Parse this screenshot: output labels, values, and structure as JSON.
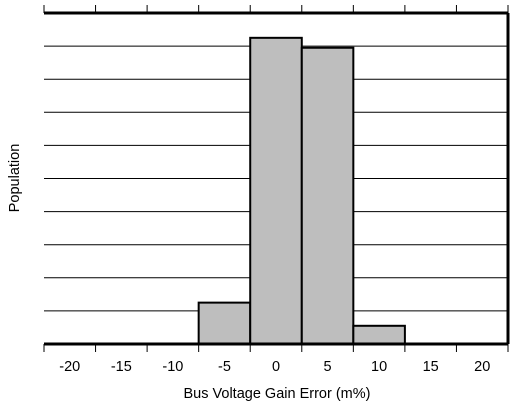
{
  "chart_data": {
    "type": "bar",
    "title": "",
    "xlabel": "Bus Voltage Gain Error (m%)",
    "ylabel": "Population",
    "x_ticks": [
      "-20",
      "-15",
      "-10",
      "-5",
      "0",
      "5",
      "10",
      "15",
      "20"
    ],
    "x_tick_values": [
      -20,
      -15,
      -10,
      -5,
      0,
      5,
      10,
      15,
      20
    ],
    "xlim": [
      -22.5,
      22.5
    ],
    "ylim": [
      0,
      10
    ],
    "grid": "horizontal",
    "bins": [
      {
        "from": -7.5,
        "to": -2.5,
        "value": 1.25
      },
      {
        "from": -2.5,
        "to": 2.5,
        "value": 9.25
      },
      {
        "from": 2.5,
        "to": 7.5,
        "value": 8.95
      },
      {
        "from": 7.5,
        "to": 12.5,
        "value": 0.55
      }
    ],
    "colors": {
      "bar_fill": "#bebebe",
      "bar_stroke": "#000000",
      "grid": "#000000",
      "frame": "#000000"
    }
  }
}
